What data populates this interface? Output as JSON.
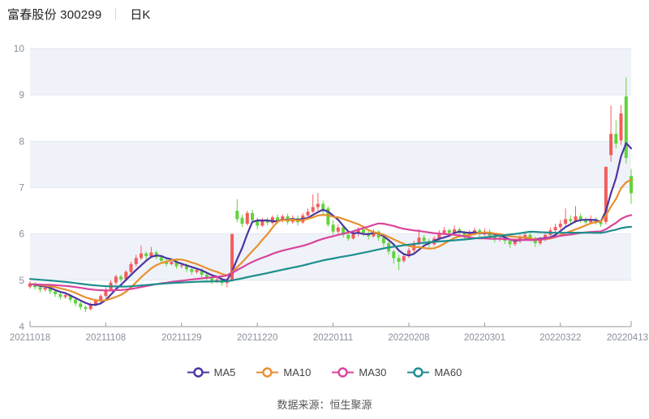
{
  "header": {
    "title": "富春股份 300299",
    "period_label": "日K"
  },
  "legend": [
    {
      "label": "MA5",
      "color": "#4b35a0"
    },
    {
      "label": "MA10",
      "color": "#e8902e"
    },
    {
      "label": "MA30",
      "color": "#d9449c"
    },
    {
      "label": "MA60",
      "color": "#1f8e8e"
    }
  ],
  "footer": {
    "source_label": "数据来源：恒生聚源"
  },
  "chart_data": {
    "type": "candlestick",
    "title": "富春股份 300299 日K",
    "ylabel": "",
    "xlabel": "",
    "ylim": [
      4,
      10
    ],
    "y_ticks": [
      4,
      5,
      6,
      7,
      8,
      9,
      10
    ],
    "x_tick_labels": [
      "20211018",
      "20211108",
      "20211129",
      "20211220",
      "20220111",
      "20220208",
      "20220301",
      "20220322",
      "20220413"
    ],
    "x_tick_indices": [
      0,
      15,
      30,
      45,
      60,
      75,
      90,
      105,
      119
    ],
    "grid": true,
    "legend_position": "bottom",
    "up_color": "#f45c5c",
    "down_color": "#62d33c",
    "band_fill": "#eff2f9",
    "grid_color": "#e2e6f0",
    "axis_color": "#999999",
    "tick_text_color": "#8a909e",
    "ma_series": [
      {
        "name": "MA5",
        "window": 5,
        "color": "#4b35a0"
      },
      {
        "name": "MA10",
        "window": 10,
        "color": "#e8902e"
      },
      {
        "name": "MA30",
        "window": 30,
        "color": "#d9449c"
      },
      {
        "name": "MA60",
        "window": 60,
        "color": "#1f8e8e"
      }
    ],
    "prehistory_closes": [
      5.35,
      5.32,
      5.36,
      5.3,
      5.28,
      5.32,
      5.26,
      5.3,
      5.24,
      5.28,
      5.22,
      5.26,
      5.2,
      5.24,
      5.18,
      5.22,
      5.16,
      5.2,
      5.14,
      5.18,
      5.0,
      4.98,
      5.02,
      4.96,
      5.0,
      4.94,
      4.98,
      4.92,
      4.96,
      4.9,
      4.92,
      4.95,
      4.9,
      4.93,
      4.88,
      4.92,
      4.86,
      4.9,
      4.94,
      4.88,
      4.92,
      4.95,
      4.9,
      4.94,
      4.88,
      4.92,
      4.96,
      4.9,
      4.88,
      4.92,
      4.95,
      4.9,
      4.93,
      4.96,
      4.92,
      4.88,
      4.9,
      4.93,
      4.9,
      4.91
    ],
    "candles": [
      [
        4.86,
        4.98,
        4.82,
        4.93
      ],
      [
        4.93,
        4.96,
        4.8,
        4.85
      ],
      [
        4.85,
        4.89,
        4.74,
        4.8
      ],
      [
        4.8,
        4.88,
        4.76,
        4.84
      ],
      [
        4.84,
        4.87,
        4.7,
        4.76
      ],
      [
        4.76,
        4.8,
        4.64,
        4.7
      ],
      [
        4.7,
        4.74,
        4.58,
        4.64
      ],
      [
        4.64,
        4.72,
        4.6,
        4.68
      ],
      [
        4.68,
        4.71,
        4.52,
        4.58
      ],
      [
        4.58,
        4.62,
        4.44,
        4.5
      ],
      [
        4.5,
        4.54,
        4.36,
        4.42
      ],
      [
        4.42,
        4.46,
        4.31,
        4.38
      ],
      [
        4.38,
        4.52,
        4.35,
        4.48
      ],
      [
        4.48,
        4.6,
        4.44,
        4.56
      ],
      [
        4.56,
        4.7,
        4.52,
        4.66
      ],
      [
        4.66,
        4.84,
        4.62,
        4.8
      ],
      [
        4.8,
        5.0,
        4.76,
        4.95
      ],
      [
        4.95,
        5.12,
        4.9,
        5.08
      ],
      [
        5.08,
        5.12,
        4.96,
        5.02
      ],
      [
        5.02,
        5.22,
        4.98,
        5.18
      ],
      [
        5.18,
        5.4,
        5.14,
        5.35
      ],
      [
        5.35,
        5.55,
        5.3,
        5.48
      ],
      [
        5.48,
        5.75,
        5.44,
        5.58
      ],
      [
        5.58,
        5.62,
        5.45,
        5.52
      ],
      [
        5.52,
        5.72,
        5.48,
        5.6
      ],
      [
        5.6,
        5.64,
        5.45,
        5.5
      ],
      [
        5.5,
        5.54,
        5.36,
        5.42
      ],
      [
        5.42,
        5.46,
        5.3,
        5.35
      ],
      [
        5.35,
        5.45,
        5.32,
        5.4
      ],
      [
        5.4,
        5.44,
        5.25,
        5.3
      ],
      [
        5.3,
        5.38,
        5.26,
        5.32
      ],
      [
        5.32,
        5.36,
        5.18,
        5.24
      ],
      [
        5.24,
        5.28,
        5.12,
        5.18
      ],
      [
        5.18,
        5.26,
        5.14,
        5.22
      ],
      [
        5.22,
        5.26,
        5.06,
        5.12
      ],
      [
        5.12,
        5.16,
        5.0,
        5.05
      ],
      [
        5.05,
        5.09,
        4.92,
        4.98
      ],
      [
        4.98,
        5.06,
        4.94,
        5.02
      ],
      [
        5.02,
        5.06,
        4.88,
        4.94
      ],
      [
        4.94,
        5.04,
        4.85,
        5.0
      ],
      [
        5.01,
        6.0,
        4.98,
        6.0
      ],
      [
        6.5,
        6.75,
        6.25,
        6.32
      ],
      [
        6.35,
        6.42,
        6.15,
        6.22
      ],
      [
        6.22,
        6.5,
        6.18,
        6.45
      ],
      [
        6.45,
        6.52,
        6.25,
        6.3
      ],
      [
        6.3,
        6.35,
        6.1,
        6.18
      ],
      [
        6.18,
        6.35,
        6.15,
        6.3
      ],
      [
        6.3,
        6.36,
        6.18,
        6.24
      ],
      [
        6.24,
        6.4,
        6.2,
        6.36
      ],
      [
        6.36,
        6.42,
        6.22,
        6.28
      ],
      [
        6.28,
        6.42,
        6.25,
        6.38
      ],
      [
        6.38,
        6.44,
        6.2,
        6.26
      ],
      [
        6.26,
        6.4,
        6.22,
        6.34
      ],
      [
        6.34,
        6.4,
        6.18,
        6.25
      ],
      [
        6.25,
        6.45,
        6.22,
        6.4
      ],
      [
        6.4,
        6.55,
        6.35,
        6.48
      ],
      [
        6.48,
        6.85,
        6.45,
        6.58
      ],
      [
        6.58,
        6.88,
        6.5,
        6.65
      ],
      [
        6.65,
        6.72,
        6.4,
        6.5
      ],
      [
        6.55,
        6.6,
        6.15,
        6.2
      ],
      [
        6.2,
        6.3,
        5.98,
        6.05
      ],
      [
        6.05,
        6.2,
        6.0,
        6.14
      ],
      [
        6.14,
        6.18,
        5.92,
        5.98
      ],
      [
        5.98,
        6.05,
        5.85,
        5.9
      ],
      [
        5.9,
        6.05,
        5.88,
        6.0
      ],
      [
        6.0,
        6.15,
        5.95,
        6.1
      ],
      [
        6.1,
        6.15,
        5.95,
        6.02
      ],
      [
        6.02,
        6.08,
        5.88,
        5.95
      ],
      [
        5.95,
        6.1,
        5.92,
        6.05
      ],
      [
        6.05,
        6.08,
        5.85,
        5.92
      ],
      [
        5.92,
        5.96,
        5.72,
        5.8
      ],
      [
        5.8,
        5.84,
        5.55,
        5.62
      ],
      [
        5.62,
        5.66,
        5.36,
        5.48
      ],
      [
        5.48,
        5.55,
        5.22,
        5.4
      ],
      [
        5.42,
        5.58,
        5.38,
        5.52
      ],
      [
        5.52,
        5.7,
        5.48,
        5.65
      ],
      [
        5.65,
        5.85,
        5.6,
        5.8
      ],
      [
        5.8,
        6.1,
        5.76,
        5.92
      ],
      [
        5.92,
        5.98,
        5.78,
        5.85
      ],
      [
        5.85,
        5.9,
        5.7,
        5.78
      ],
      [
        5.78,
        5.95,
        5.74,
        5.9
      ],
      [
        5.9,
        6.08,
        5.86,
        6.02
      ],
      [
        6.02,
        6.15,
        5.98,
        6.08
      ],
      [
        6.08,
        6.12,
        5.95,
        6.02
      ],
      [
        6.02,
        6.18,
        5.98,
        6.1
      ],
      [
        6.1,
        6.14,
        5.96,
        6.02
      ],
      [
        6.02,
        6.06,
        5.88,
        5.95
      ],
      [
        5.95,
        6.08,
        5.92,
        6.02
      ],
      [
        6.02,
        6.14,
        5.98,
        6.08
      ],
      [
        6.08,
        6.12,
        5.94,
        6.0
      ],
      [
        6.0,
        6.12,
        5.96,
        6.05
      ],
      [
        6.05,
        6.1,
        5.9,
        5.96
      ],
      [
        5.96,
        6.0,
        5.82,
        5.88
      ],
      [
        5.88,
        5.98,
        5.84,
        5.92
      ],
      [
        5.92,
        5.96,
        5.78,
        5.85
      ],
      [
        5.85,
        5.9,
        5.7,
        5.78
      ],
      [
        5.78,
        5.9,
        5.74,
        5.85
      ],
      [
        5.85,
        5.98,
        5.8,
        5.92
      ],
      [
        5.92,
        6.05,
        5.88,
        5.98
      ],
      [
        5.98,
        6.02,
        5.84,
        5.9
      ],
      [
        5.9,
        5.94,
        5.72,
        5.8
      ],
      [
        5.8,
        5.94,
        5.76,
        5.88
      ],
      [
        5.88,
        6.04,
        5.84,
        5.98
      ],
      [
        5.98,
        6.14,
        5.94,
        6.08
      ],
      [
        6.08,
        6.22,
        6.04,
        6.15
      ],
      [
        6.15,
        6.3,
        6.1,
        6.22
      ],
      [
        6.22,
        6.55,
        6.18,
        6.32
      ],
      [
        6.32,
        6.4,
        6.2,
        6.28
      ],
      [
        6.28,
        6.6,
        6.24,
        6.38
      ],
      [
        6.38,
        6.44,
        6.24,
        6.3
      ],
      [
        6.3,
        6.36,
        6.18,
        6.25
      ],
      [
        6.25,
        6.4,
        6.22,
        6.32
      ],
      [
        6.32,
        6.36,
        6.2,
        6.25
      ],
      [
        6.25,
        6.3,
        6.15,
        6.21
      ],
      [
        6.26,
        7.45,
        6.21,
        7.45
      ],
      [
        7.7,
        8.77,
        7.56,
        8.16
      ],
      [
        8.16,
        8.45,
        7.85,
        7.95
      ],
      [
        8.02,
        8.78,
        7.92,
        8.6
      ],
      [
        8.97,
        9.38,
        7.52,
        7.64
      ],
      [
        7.25,
        7.4,
        6.65,
        6.88
      ]
    ]
  }
}
